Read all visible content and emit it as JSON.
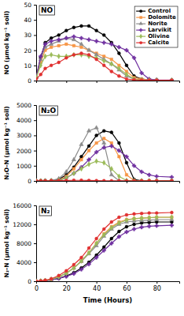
{
  "chart_data": [
    {
      "type": "line",
      "title": "NO",
      "y_label": "NO (µmol kg⁻¹ soil)",
      "x": [
        0,
        3,
        6,
        10,
        15,
        20,
        25,
        30,
        35,
        40,
        45,
        50,
        55,
        60,
        65,
        70,
        75,
        80,
        90
      ],
      "xlim": [
        0,
        95
      ],
      "xticks": [
        0,
        20,
        40,
        60,
        80
      ],
      "ylim": [
        0,
        50
      ],
      "yticks": [
        0,
        10,
        20,
        30,
        40,
        50
      ],
      "tick_labels": "y",
      "legend": "top-right",
      "series": [
        {
          "name": "Control",
          "color": "#000000",
          "marker": "circle",
          "values": [
            2,
            15,
            25,
            28,
            30,
            33,
            35,
            36,
            36,
            33,
            30,
            25,
            18,
            10,
            3,
            1,
            0.5,
            0.3,
            0.2
          ]
        },
        {
          "name": "Dolomite",
          "color": "#f79646",
          "marker": "square",
          "values": [
            2,
            12,
            20,
            22,
            23,
            24,
            23,
            22,
            20,
            18,
            16,
            14,
            10,
            6,
            2,
            1,
            0.5,
            0.3,
            0.2
          ]
        },
        {
          "name": "Norite",
          "color": "#8c8c8c",
          "marker": "triangle",
          "values": [
            2,
            14,
            22,
            24,
            26,
            28,
            27,
            24,
            20,
            17,
            14,
            11,
            7,
            3,
            1,
            0.5,
            0.3,
            0.2,
            0.2
          ]
        },
        {
          "name": "Larvikit",
          "color": "#7030a0",
          "marker": "cross",
          "values": [
            2,
            16,
            24,
            26,
            27,
            28,
            29,
            28,
            27,
            26,
            25,
            24,
            22,
            20,
            15,
            5,
            1,
            0.5,
            0.3
          ]
        },
        {
          "name": "Olivine",
          "color": "#9bbb59",
          "marker": "diamond",
          "values": [
            2,
            10,
            16,
            17,
            16,
            16,
            17,
            17,
            16,
            15,
            13,
            11,
            8,
            4,
            1,
            0.5,
            0.3,
            0.2,
            0.2
          ]
        },
        {
          "name": "Calcite",
          "color": "#e03030",
          "marker": "circle",
          "values": [
            1,
            4,
            8,
            10,
            12,
            15,
            17,
            18,
            17,
            14,
            10,
            6,
            3,
            1,
            0.5,
            0.3,
            0.2,
            0.2,
            0.2
          ]
        }
      ]
    },
    {
      "type": "line",
      "title": "N₂O",
      "y_label": "N₂O-N (µmol kg⁻¹ soil)",
      "x": [
        0,
        3,
        6,
        10,
        15,
        20,
        25,
        30,
        35,
        40,
        45,
        50,
        55,
        60,
        65,
        70,
        75,
        80,
        90
      ],
      "xlim": [
        0,
        95
      ],
      "xticks": [
        0,
        20,
        40,
        60,
        80
      ],
      "ylim": [
        0,
        5000
      ],
      "yticks": [
        0,
        1000,
        2000,
        3000,
        4000,
        5000
      ],
      "tick_labels": "y",
      "series": [
        {
          "name": "Control",
          "color": "#000000",
          "marker": "circle",
          "values": [
            0,
            0,
            5,
            20,
            100,
            400,
            900,
            1600,
            2300,
            3000,
            3300,
            3200,
            2500,
            1200,
            100,
            10,
            5,
            5,
            5
          ]
        },
        {
          "name": "Dolomite",
          "color": "#f79646",
          "marker": "square",
          "values": [
            0,
            0,
            5,
            15,
            60,
            300,
            800,
            1400,
            2000,
            2500,
            2800,
            2500,
            1600,
            400,
            20,
            5,
            5,
            5,
            5
          ]
        },
        {
          "name": "Norite",
          "color": "#8c8c8c",
          "marker": "triangle",
          "values": [
            0,
            0,
            5,
            20,
            150,
            600,
            1400,
            2400,
            3300,
            3500,
            2500,
            400,
            20,
            5,
            5,
            5,
            5,
            5,
            5
          ]
        },
        {
          "name": "Larvikit",
          "color": "#7030a0",
          "marker": "cross",
          "values": [
            0,
            0,
            5,
            10,
            50,
            200,
            500,
            900,
            1400,
            1900,
            2200,
            2300,
            2000,
            1600,
            1000,
            600,
            400,
            300,
            250
          ]
        },
        {
          "name": "Olivine",
          "color": "#9bbb59",
          "marker": "diamond",
          "values": [
            0,
            0,
            5,
            10,
            50,
            200,
            500,
            800,
            1100,
            1300,
            1200,
            800,
            300,
            30,
            5,
            5,
            5,
            5,
            5
          ]
        },
        {
          "name": "Calcite",
          "color": "#e03030",
          "marker": "circle",
          "values": [
            0,
            0,
            5,
            10,
            20,
            30,
            40,
            40,
            30,
            20,
            10,
            5,
            5,
            5,
            5,
            5,
            5,
            5,
            5
          ]
        }
      ]
    },
    {
      "type": "line",
      "title": "N₂",
      "y_label": "N₂-N (µmol kg⁻¹ soil)",
      "x_label": "Time (Hours)",
      "x": [
        0,
        3,
        6,
        10,
        15,
        20,
        25,
        30,
        35,
        40,
        45,
        50,
        55,
        60,
        65,
        70,
        75,
        80,
        90
      ],
      "xlim": [
        0,
        95
      ],
      "xticks": [
        0,
        20,
        40,
        60,
        80
      ],
      "ylim": [
        0,
        16000
      ],
      "yticks": [
        0,
        4000,
        8000,
        12000,
        16000
      ],
      "series": [
        {
          "name": "Control",
          "color": "#000000",
          "marker": "circle",
          "values": [
            0,
            30,
            100,
            300,
            600,
            1100,
            1800,
            2800,
            4000,
            5500,
            7200,
            9000,
            10500,
            11500,
            12000,
            12300,
            12400,
            12500,
            12500
          ]
        },
        {
          "name": "Dolomite",
          "color": "#f79646",
          "marker": "square",
          "values": [
            0,
            40,
            150,
            400,
            900,
            1700,
            2800,
            4200,
            6000,
            8000,
            10000,
            11500,
            12500,
            13000,
            13200,
            13300,
            13400,
            13500,
            13500
          ]
        },
        {
          "name": "Norite",
          "color": "#8c8c8c",
          "marker": "triangle",
          "values": [
            0,
            40,
            150,
            400,
            900,
            1700,
            2800,
            4200,
            5800,
            7500,
            9500,
            11000,
            12000,
            12500,
            12700,
            12800,
            12900,
            13000,
            13000
          ]
        },
        {
          "name": "Larvikit",
          "color": "#7030a0",
          "marker": "cross",
          "values": [
            0,
            30,
            100,
            300,
            600,
            1000,
            1600,
            2500,
            3600,
            5000,
            6500,
            8000,
            9400,
            10400,
            11000,
            11400,
            11600,
            11700,
            11800
          ]
        },
        {
          "name": "Olivine",
          "color": "#9bbb59",
          "marker": "diamond",
          "values": [
            0,
            40,
            150,
            400,
            900,
            1700,
            2800,
            4300,
            6000,
            8000,
            9800,
            11300,
            12300,
            12900,
            13200,
            13300,
            13400,
            13500,
            13500
          ]
        },
        {
          "name": "Calcite",
          "color": "#e03030",
          "marker": "circle",
          "values": [
            0,
            50,
            200,
            500,
            1200,
            2200,
            3500,
            5000,
            7000,
            9000,
            11000,
            12500,
            13500,
            14000,
            14200,
            14300,
            14400,
            14400,
            14500
          ]
        }
      ]
    }
  ]
}
